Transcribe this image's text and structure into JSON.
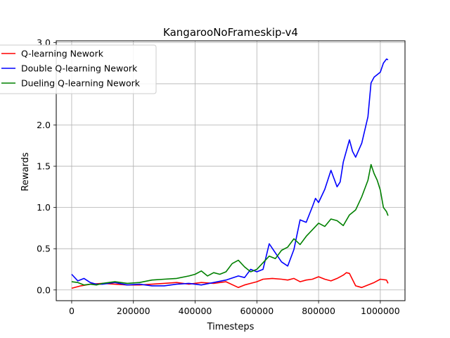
{
  "chart_data": {
    "type": "line",
    "title": "KangarooNoFrameskip-v4",
    "xlabel": "Timesteps",
    "ylabel": "Rewards",
    "xlim": [
      -50000,
      1080000
    ],
    "ylim": [
      -0.13,
      3.02
    ],
    "xticks": [
      0,
      200000,
      400000,
      600000,
      800000,
      1000000
    ],
    "xtick_labels": [
      "0",
      "200000",
      "400000",
      "600000",
      "800000",
      "1000000"
    ],
    "yticks": [
      0.0,
      0.5,
      1.0,
      1.5,
      2.0,
      2.5,
      3.0
    ],
    "ytick_labels": [
      "0.0",
      "0.5",
      "1.0",
      "1.5",
      "2.0",
      "2.5",
      "3.0"
    ],
    "grid": true,
    "legend_position": "upper-left",
    "series": [
      {
        "name": "Q-learning Nework",
        "color": "#ff0000",
        "x": [
          0,
          30000,
          60000,
          100000,
          140000,
          180000,
          220000,
          260000,
          300000,
          340000,
          380000,
          420000,
          460000,
          500000,
          540000,
          560000,
          580000,
          600000,
          620000,
          650000,
          680000,
          700000,
          720000,
          740000,
          760000,
          780000,
          800000,
          820000,
          840000,
          860000,
          880000,
          890000,
          900000,
          920000,
          940000,
          960000,
          980000,
          1000000,
          1020000,
          1025000
        ],
        "y": [
          0.02,
          0.05,
          0.07,
          0.08,
          0.07,
          0.06,
          0.06,
          0.07,
          0.08,
          0.09,
          0.07,
          0.09,
          0.08,
          0.1,
          0.03,
          0.06,
          0.08,
          0.1,
          0.13,
          0.14,
          0.13,
          0.12,
          0.14,
          0.1,
          0.12,
          0.13,
          0.16,
          0.13,
          0.11,
          0.14,
          0.18,
          0.21,
          0.2,
          0.05,
          0.03,
          0.06,
          0.09,
          0.13,
          0.12,
          0.08
        ]
      },
      {
        "name": "Double Q-learning Nework",
        "color": "#0000ff",
        "x": [
          0,
          20000,
          40000,
          60000,
          80000,
          100000,
          140000,
          180000,
          220000,
          260000,
          300000,
          340000,
          380000,
          420000,
          460000,
          500000,
          540000,
          560000,
          580000,
          600000,
          620000,
          640000,
          660000,
          680000,
          700000,
          720000,
          740000,
          760000,
          780000,
          790000,
          800000,
          820000,
          840000,
          860000,
          870000,
          880000,
          900000,
          910000,
          920000,
          940000,
          960000,
          970000,
          980000,
          1000000,
          1010000,
          1020000,
          1025000
        ],
        "y": [
          0.19,
          0.11,
          0.14,
          0.09,
          0.07,
          0.07,
          0.09,
          0.06,
          0.07,
          0.05,
          0.05,
          0.07,
          0.08,
          0.06,
          0.09,
          0.12,
          0.17,
          0.15,
          0.25,
          0.22,
          0.25,
          0.56,
          0.45,
          0.34,
          0.29,
          0.49,
          0.85,
          0.82,
          1.01,
          1.11,
          1.06,
          1.22,
          1.45,
          1.25,
          1.31,
          1.55,
          1.82,
          1.68,
          1.61,
          1.78,
          2.1,
          2.51,
          2.58,
          2.64,
          2.75,
          2.8,
          2.79
        ]
      },
      {
        "name": "Dueling Q-learning Nework",
        "color": "#008000",
        "x": [
          0,
          20000,
          40000,
          60000,
          80000,
          100000,
          140000,
          180000,
          220000,
          260000,
          300000,
          340000,
          380000,
          400000,
          420000,
          440000,
          460000,
          480000,
          500000,
          520000,
          540000,
          560000,
          580000,
          600000,
          620000,
          640000,
          660000,
          680000,
          700000,
          720000,
          740000,
          760000,
          780000,
          800000,
          820000,
          840000,
          860000,
          880000,
          900000,
          920000,
          940000,
          960000,
          970000,
          980000,
          990000,
          1000000,
          1010000,
          1020000,
          1025000
        ],
        "y": [
          0.1,
          0.09,
          0.06,
          0.07,
          0.06,
          0.08,
          0.1,
          0.08,
          0.09,
          0.12,
          0.13,
          0.14,
          0.17,
          0.19,
          0.23,
          0.17,
          0.21,
          0.19,
          0.22,
          0.32,
          0.36,
          0.28,
          0.22,
          0.25,
          0.33,
          0.41,
          0.38,
          0.48,
          0.52,
          0.62,
          0.55,
          0.65,
          0.73,
          0.81,
          0.77,
          0.86,
          0.84,
          0.78,
          0.91,
          0.97,
          1.13,
          1.33,
          1.52,
          1.41,
          1.33,
          1.21,
          1.0,
          0.95,
          0.9
        ]
      }
    ]
  }
}
